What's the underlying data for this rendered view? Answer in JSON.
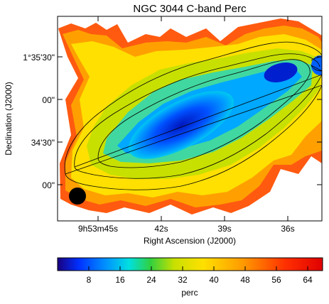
{
  "figure": {
    "title": "NGC 3044  C-band  Perc",
    "xlabel": "Right Ascension (J2000)",
    "ylabel": "Declination (J2000)",
    "x_ticks": [
      "9h53m45s",
      "42s",
      "39s",
      "36s"
    ],
    "y_ticks": [
      "1°35'30\"",
      "00\"",
      "34'30\"",
      "00\""
    ],
    "colorbar": {
      "label": "perc",
      "ticks": [
        "8",
        "16",
        "24",
        "32",
        "40",
        "48",
        "56",
        "64"
      ],
      "range": [
        0,
        68
      ],
      "colors": [
        "#1a0080",
        "#0030ff",
        "#0090ff",
        "#00e0e0",
        "#30d040",
        "#c8e000",
        "#ffe000",
        "#ff9a00",
        "#ff3000",
        "#e00000"
      ]
    },
    "beam": "filled-circle"
  }
}
